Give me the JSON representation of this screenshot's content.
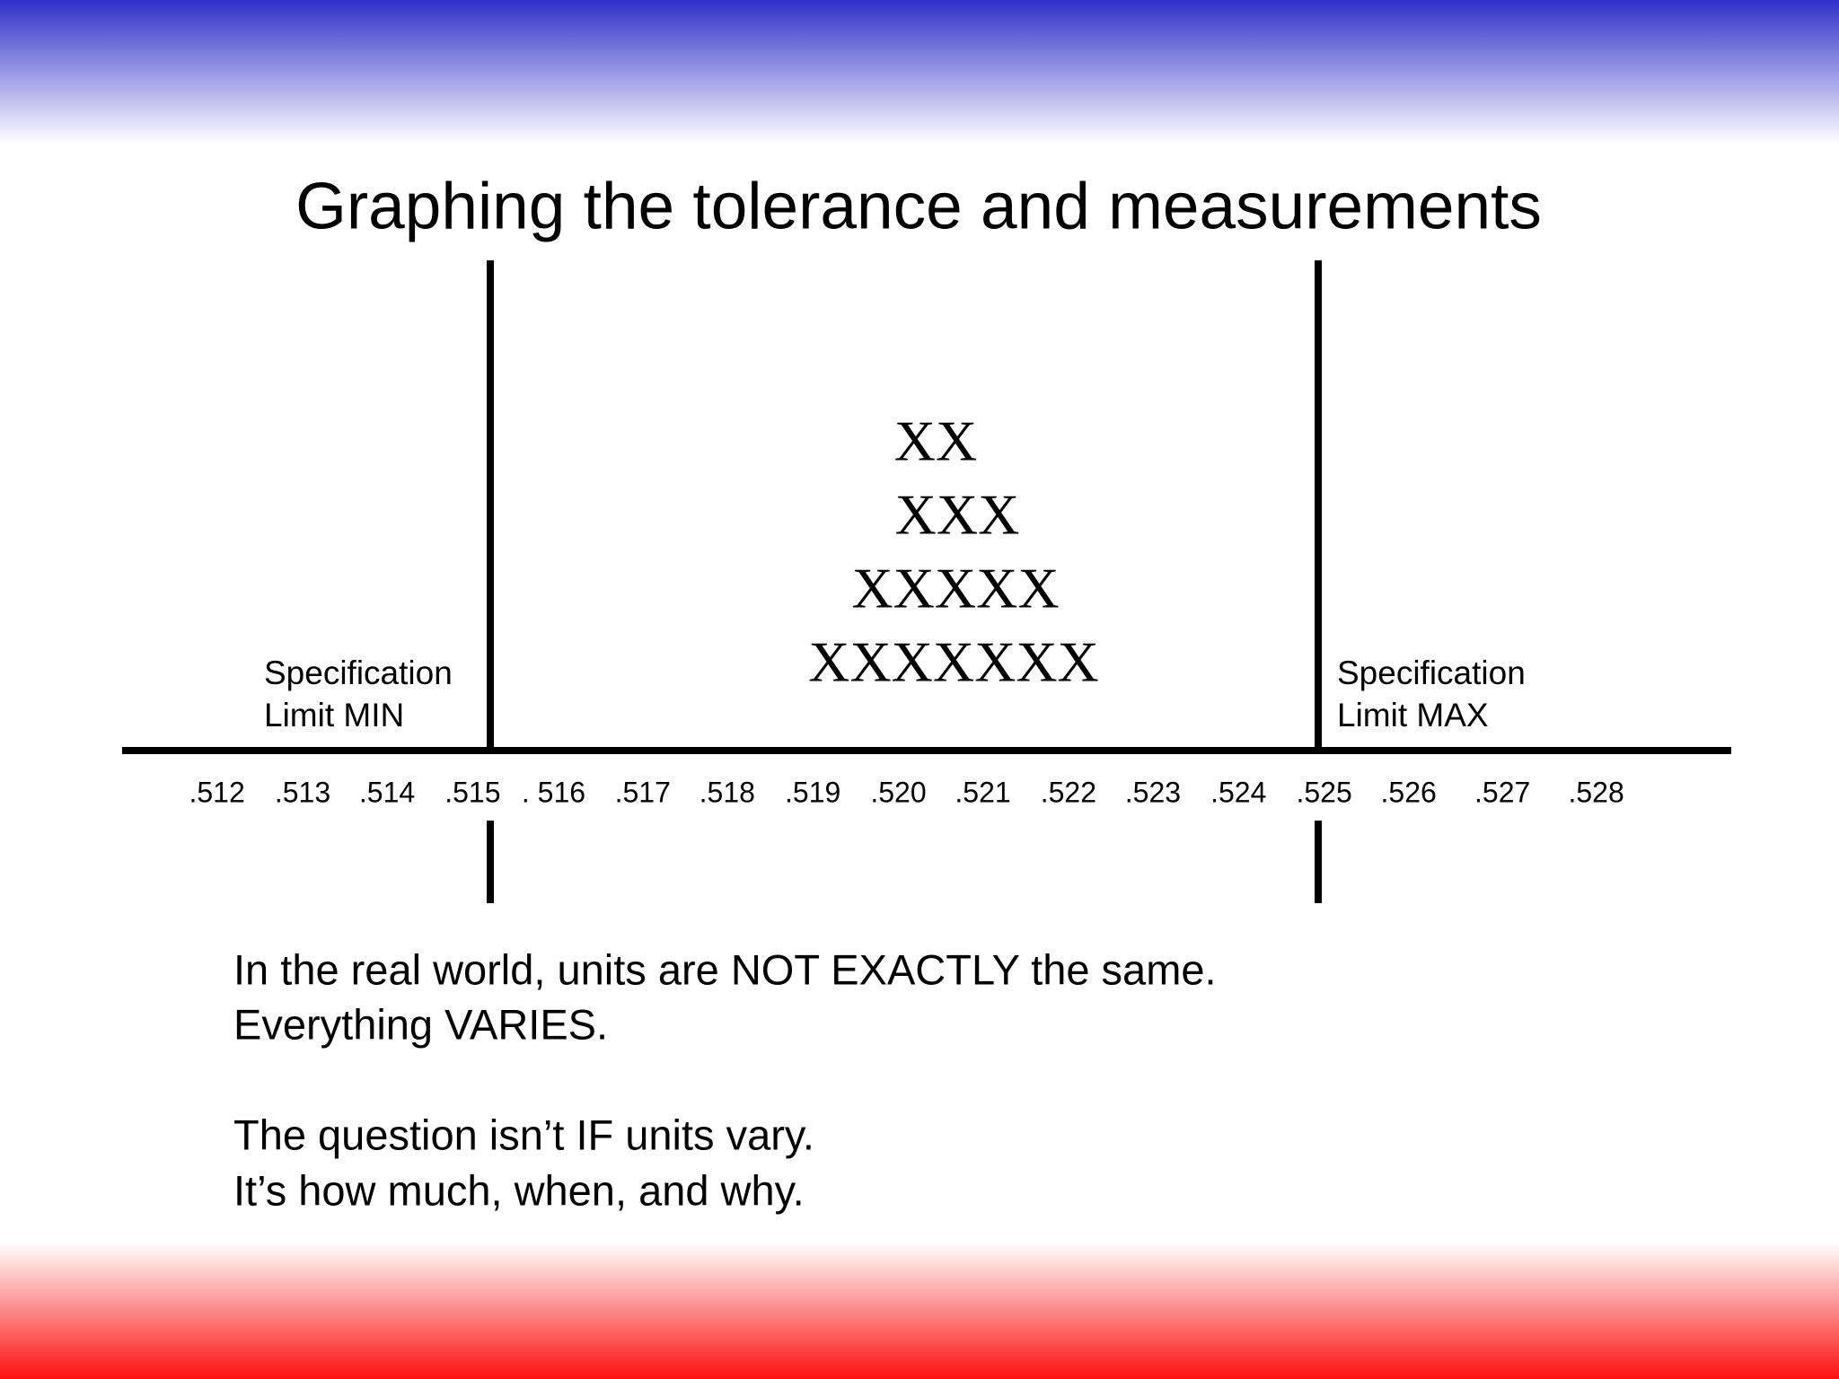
{
  "title": "Graphing the tolerance and measurements",
  "scale_labels": [
    ".512",
    ".513",
    ".514",
    ".515",
    ". 516",
    ".517",
    ".518",
    ".519",
    ".520",
    ".521",
    ".522",
    ".523",
    ".524",
    ".525",
    ".526",
    ".527",
    ".528"
  ],
  "spec_min": [
    "Specification",
    "Limit MIN"
  ],
  "spec_max": [
    "Specification",
    "Limit MAX"
  ],
  "x_rows": [
    "XX",
    "XXX",
    "XXXXX",
    "XXXXXXX"
  ],
  "body": [
    [
      "In the real world, units are NOT EXACTLY the same.",
      "Everything VARIES."
    ],
    [
      "The question isn’t IF units vary.",
      "It’s how much, when, and why."
    ]
  ]
}
